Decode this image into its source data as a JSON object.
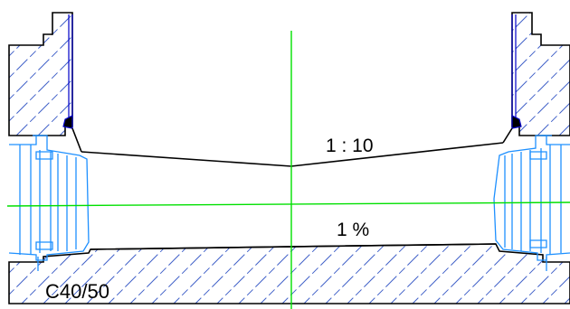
{
  "drawing": {
    "slope_label": "1 : 10",
    "gradient_label": "1 %",
    "material_label": "C40/50"
  },
  "colors": {
    "concrete_hatch": "#4060c8",
    "outline": "#000000",
    "pipe_blue": "#1e90ff",
    "liner_blue": "#0000c8",
    "centerline_green": "#00e000",
    "background": "#ffffff"
  },
  "icons": {
    "left_pipe": "pipe-connector-icon",
    "right_pipe": "pipe-connector-icon"
  }
}
